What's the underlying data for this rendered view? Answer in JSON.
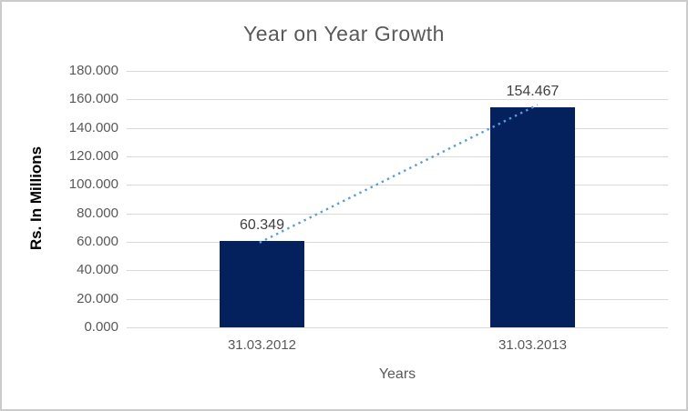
{
  "chart_data": {
    "type": "bar",
    "title": "Year on Year Growth",
    "xlabel": "Years",
    "ylabel": "Rs. In Millions",
    "categories": [
      "31.03.2012",
      "31.03.2013"
    ],
    "values": [
      60.349,
      154.467
    ],
    "data_labels": [
      "60.349",
      "154.467"
    ],
    "ylim": [
      0,
      180
    ],
    "ytick_step": 20,
    "ytick_values": [
      0,
      20,
      40,
      60,
      80,
      100,
      120,
      140,
      160,
      180
    ],
    "ytick_labels": [
      "0.000",
      "20.000",
      "40.000",
      "60.000",
      "80.000",
      "100.000",
      "120.000",
      "140.000",
      "160.000",
      "180.000"
    ],
    "grid": true,
    "legend": "none",
    "trendline": {
      "type": "linear",
      "style": "dotted",
      "color": "#5B9BD5"
    },
    "colors": {
      "bar": "#04215E",
      "gridline": "#D9D9D9",
      "title_text": "#595959",
      "axis_text": "#595959",
      "data_label_text": "#404040",
      "y_axis_title_text": "#000000",
      "border": "#CBCBCB",
      "background": "#FFFFFF"
    }
  }
}
